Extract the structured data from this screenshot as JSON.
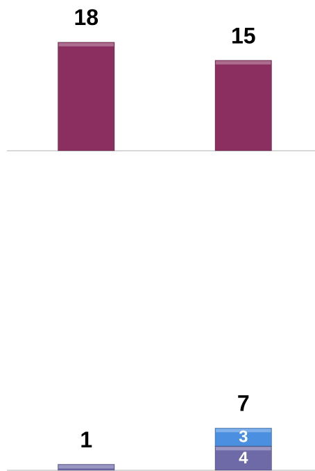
{
  "chart_data": [
    {
      "type": "bar",
      "categories": [
        null,
        null
      ],
      "values": [
        18,
        15
      ],
      "color": "#8a2f5f",
      "ylim": [
        0,
        25
      ]
    },
    {
      "type": "stacked_bar",
      "categories": [
        null,
        null
      ],
      "series": [
        {
          "color": "#6e6aa8",
          "values": [
            1,
            4
          ],
          "value_labels": [
            null,
            "4"
          ]
        },
        {
          "color": "#4a8fe0",
          "values": [
            null,
            3
          ],
          "value_labels": [
            null,
            "3"
          ]
        }
      ],
      "totals": [
        1,
        7
      ],
      "ylim": [
        0,
        25
      ]
    }
  ]
}
